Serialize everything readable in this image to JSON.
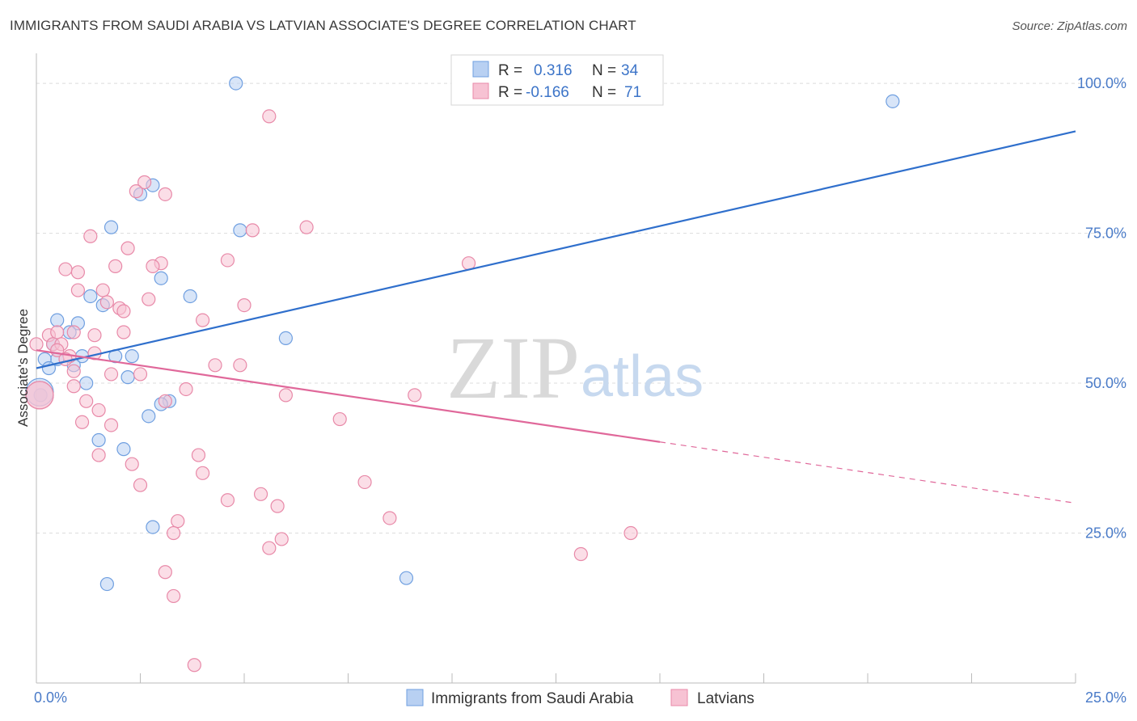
{
  "header": {
    "title": "IMMIGRANTS FROM SAUDI ARABIA VS LATVIAN ASSOCIATE'S DEGREE CORRELATION CHART",
    "source": "Source: ZipAtlas.com"
  },
  "watermark": {
    "zip": "ZIP",
    "atlas": "atlas"
  },
  "colors": {
    "blue_fill": "#b8d0f2",
    "blue_stroke": "#6f9fe0",
    "blue_line": "#2f6fcc",
    "pink_fill": "#f7c2d3",
    "pink_stroke": "#e889a8",
    "pink_line": "#e0689a",
    "grid": "#dcdcdc"
  },
  "chart_data": {
    "type": "scatter",
    "title": "IMMIGRANTS FROM SAUDI ARABIA VS LATVIAN ASSOCIATE'S DEGREE CORRELATION CHART",
    "xlabel": "",
    "ylabel": "Associate's Degree",
    "xlim": [
      0,
      25
    ],
    "ylim": [
      0,
      105
    ],
    "x_tick_labels": [
      "0.0%",
      "25.0%"
    ],
    "y_ticks": [
      25,
      50,
      75,
      100
    ],
    "y_tick_labels": [
      "25.0%",
      "50.0%",
      "75.0%",
      "100.0%"
    ],
    "legend": [
      {
        "r_label": "R =",
        "r_value": "0.316",
        "n_label": "N =",
        "n_value": "34"
      },
      {
        "r_label": "R =",
        "r_value": "-0.166",
        "n_label": "N =",
        "n_value": "71"
      }
    ],
    "series": [
      {
        "name": "Immigrants from Saudi Arabia",
        "trend": {
          "x0": 0,
          "y0": 52.5,
          "x1": 25,
          "y1": 92,
          "dash_from": null
        },
        "points": [
          [
            4.8,
            100
          ],
          [
            20.6,
            97
          ],
          [
            2.8,
            83
          ],
          [
            2.5,
            81.5
          ],
          [
            1.8,
            76
          ],
          [
            4.9,
            75.5
          ],
          [
            3.0,
            67.5
          ],
          [
            3.7,
            64.5
          ],
          [
            1.3,
            64.5
          ],
          [
            1.6,
            63
          ],
          [
            1.0,
            60
          ],
          [
            0.5,
            60.5
          ],
          [
            0.8,
            58.5
          ],
          [
            6.0,
            57.5
          ],
          [
            0.4,
            56.5
          ],
          [
            0.5,
            54
          ],
          [
            1.1,
            54.5
          ],
          [
            1.9,
            54.5
          ],
          [
            2.3,
            54.5
          ],
          [
            0.2,
            54
          ],
          [
            0.3,
            52.5
          ],
          [
            0.9,
            53
          ],
          [
            2.2,
            51
          ],
          [
            1.2,
            50
          ],
          [
            0.1,
            48
          ],
          [
            3.2,
            47
          ],
          [
            3.0,
            46.5
          ],
          [
            2.7,
            44.5
          ],
          [
            1.5,
            40.5
          ],
          [
            2.1,
            39
          ],
          [
            2.8,
            26
          ],
          [
            1.7,
            16.5
          ],
          [
            8.9,
            17.5
          ],
          [
            0.0,
            48.5
          ]
        ]
      },
      {
        "name": "Latvians",
        "trend": {
          "x0": 0,
          "y0": 55.5,
          "x1": 25,
          "y1": 30,
          "dash_from": 15
        },
        "points": [
          [
            5.6,
            94.5
          ],
          [
            2.6,
            83.5
          ],
          [
            2.4,
            82
          ],
          [
            3.1,
            81.5
          ],
          [
            6.5,
            76
          ],
          [
            5.2,
            75.5
          ],
          [
            1.3,
            74.5
          ],
          [
            2.2,
            72.5
          ],
          [
            4.6,
            70.5
          ],
          [
            3.0,
            70
          ],
          [
            2.8,
            69.5
          ],
          [
            1.9,
            69.5
          ],
          [
            0.7,
            69
          ],
          [
            1.0,
            68.5
          ],
          [
            10.4,
            70
          ],
          [
            1.0,
            65.5
          ],
          [
            1.6,
            65.5
          ],
          [
            2.7,
            64
          ],
          [
            1.7,
            63.5
          ],
          [
            5.0,
            63
          ],
          [
            2.0,
            62.5
          ],
          [
            2.1,
            62
          ],
          [
            4.0,
            60.5
          ],
          [
            0.3,
            58
          ],
          [
            0.5,
            58.5
          ],
          [
            0.9,
            58.5
          ],
          [
            2.1,
            58.5
          ],
          [
            1.4,
            58
          ],
          [
            0.4,
            56.5
          ],
          [
            0.6,
            56.5
          ],
          [
            0.0,
            56.5
          ],
          [
            0.5,
            55.5
          ],
          [
            1.4,
            55
          ],
          [
            0.8,
            54.5
          ],
          [
            0.7,
            54
          ],
          [
            4.3,
            53
          ],
          [
            4.9,
            53
          ],
          [
            0.9,
            52
          ],
          [
            1.8,
            51.5
          ],
          [
            2.5,
            51.5
          ],
          [
            0.9,
            49.5
          ],
          [
            3.6,
            49
          ],
          [
            6.0,
            48
          ],
          [
            9.1,
            48
          ],
          [
            1.2,
            47
          ],
          [
            3.1,
            47
          ],
          [
            1.5,
            45.5
          ],
          [
            7.3,
            44
          ],
          [
            1.1,
            43.5
          ],
          [
            1.8,
            43
          ],
          [
            1.5,
            38
          ],
          [
            3.9,
            38
          ],
          [
            2.3,
            36.5
          ],
          [
            4.0,
            35
          ],
          [
            7.9,
            33.5
          ],
          [
            2.5,
            33
          ],
          [
            5.4,
            31.5
          ],
          [
            4.6,
            30.5
          ],
          [
            5.8,
            29.5
          ],
          [
            8.5,
            27.5
          ],
          [
            3.4,
            27
          ],
          [
            3.3,
            25
          ],
          [
            14.3,
            25
          ],
          [
            5.9,
            24
          ],
          [
            5.6,
            22.5
          ],
          [
            13.1,
            21.5
          ],
          [
            3.1,
            18.5
          ],
          [
            3.3,
            14.5
          ],
          [
            3.8,
            3
          ],
          [
            0.0,
            48
          ],
          [
            0.0,
            48
          ]
        ]
      }
    ]
  },
  "bottom_legend": {
    "items": [
      "Immigrants from Saudi Arabia",
      "Latvians"
    ]
  }
}
